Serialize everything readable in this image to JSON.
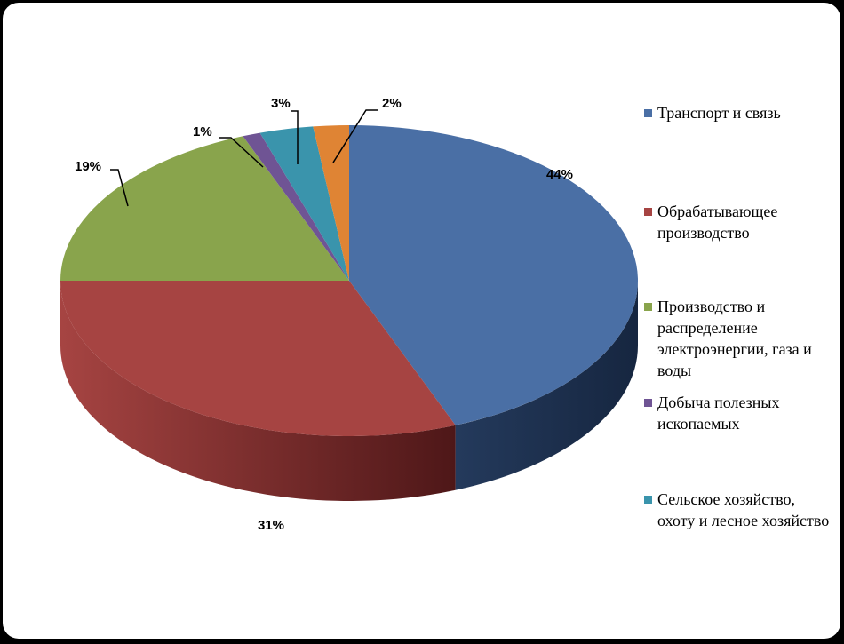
{
  "chart_data": {
    "type": "pie",
    "categories": [
      "Транспорт и связь",
      "Обрабатывающее производство",
      "Производство и распределение электроэнергии, газа и воды",
      "Добыча полезных ископаемых",
      "Сельское хозяйство, охоту и лесное хозяйство",
      ""
    ],
    "values": [
      44,
      31,
      19,
      1,
      3,
      2
    ],
    "labels": [
      "44%",
      "31%",
      "19%",
      "1%",
      "3%",
      "2%"
    ],
    "colors": [
      "#4A6FA5",
      "#A64442",
      "#89A44C",
      "#6F5494",
      "#3A94AC",
      "#DF8434"
    ],
    "legend_position": "right",
    "style": "3d"
  },
  "legend": {
    "items": [
      {
        "label": "Транспорт и связь",
        "color": "#4A6FA5"
      },
      {
        "label": "Обрабатывающее производство",
        "color": "#A64442"
      },
      {
        "label": "Производство и распределение электроэнергии, газа и воды",
        "color": "#89A44C"
      },
      {
        "label": "Добыча полезных ископаемых",
        "color": "#6F5494"
      },
      {
        "label": "Сельское хозяйство, охоту и лесное хозяйство",
        "color": "#3A94AC"
      }
    ]
  }
}
